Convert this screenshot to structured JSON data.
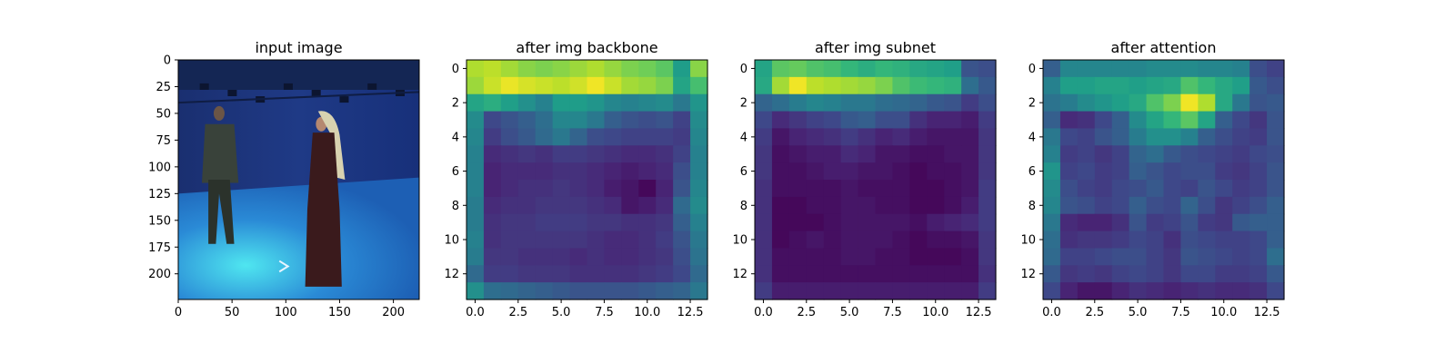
{
  "chart_data": [
    {
      "type": "image",
      "title": "input image",
      "xlim": [
        0,
        224
      ],
      "ylim": [
        224,
        0
      ],
      "xticks": [
        0,
        50,
        100,
        150,
        200
      ],
      "yticks": [
        0,
        25,
        50,
        75,
        100,
        125,
        150,
        175,
        200
      ],
      "xtick_labels": [
        "0",
        "50",
        "100",
        "150",
        "200"
      ],
      "ytick_labels": [
        "0",
        "25",
        "50",
        "75",
        "100",
        "125",
        "150",
        "175",
        "200"
      ],
      "image_description": [
        "man-standing-left",
        "woman-in-long-robe-right",
        "blue-studio-floor",
        "studio-lights-top"
      ],
      "colors": {
        "wall": "#1f3a86",
        "floor": "#2a8ad6",
        "floor_glow": "#4fe6f0",
        "man": "#39423a",
        "woman": "#3a1a1c"
      }
    },
    {
      "type": "heatmap",
      "title": "after img backbone",
      "colormap": "viridis",
      "xlim": [
        -0.5,
        13.5
      ],
      "ylim": [
        13.5,
        -0.5
      ],
      "xticks": [
        0,
        2.5,
        5,
        7.5,
        10,
        12.5
      ],
      "yticks": [
        0,
        2,
        4,
        6,
        8,
        10,
        12
      ],
      "xtick_labels": [
        "0.0",
        "2.5",
        "5.0",
        "7.5",
        "10.0",
        "12.5"
      ],
      "ytick_labels": [
        "0",
        "2",
        "4",
        "6",
        "8",
        "10",
        "12"
      ],
      "values": [
        [
          0.88,
          0.9,
          0.86,
          0.82,
          0.8,
          0.82,
          0.85,
          0.88,
          0.84,
          0.8,
          0.78,
          0.74,
          0.55,
          0.82
        ],
        [
          0.85,
          0.92,
          0.97,
          0.94,
          0.92,
          0.9,
          0.93,
          0.98,
          0.92,
          0.86,
          0.84,
          0.8,
          0.58,
          0.7
        ],
        [
          0.58,
          0.62,
          0.56,
          0.5,
          0.44,
          0.55,
          0.55,
          0.52,
          0.46,
          0.44,
          0.46,
          0.48,
          0.4,
          0.52
        ],
        [
          0.48,
          0.22,
          0.26,
          0.3,
          0.36,
          0.46,
          0.46,
          0.4,
          0.3,
          0.26,
          0.24,
          0.26,
          0.2,
          0.48
        ],
        [
          0.46,
          0.18,
          0.24,
          0.28,
          0.34,
          0.4,
          0.32,
          0.24,
          0.22,
          0.2,
          0.2,
          0.2,
          0.18,
          0.46
        ],
        [
          0.44,
          0.12,
          0.14,
          0.16,
          0.14,
          0.18,
          0.18,
          0.16,
          0.14,
          0.12,
          0.12,
          0.14,
          0.2,
          0.44
        ],
        [
          0.44,
          0.1,
          0.12,
          0.12,
          0.12,
          0.14,
          0.14,
          0.12,
          0.1,
          0.08,
          0.1,
          0.12,
          0.24,
          0.44
        ],
        [
          0.44,
          0.1,
          0.12,
          0.14,
          0.14,
          0.16,
          0.14,
          0.12,
          0.08,
          0.06,
          0.02,
          0.1,
          0.26,
          0.46
        ],
        [
          0.42,
          0.12,
          0.14,
          0.14,
          0.16,
          0.16,
          0.16,
          0.14,
          0.12,
          0.06,
          0.08,
          0.12,
          0.34,
          0.48
        ],
        [
          0.42,
          0.14,
          0.16,
          0.16,
          0.18,
          0.18,
          0.18,
          0.16,
          0.16,
          0.14,
          0.14,
          0.16,
          0.3,
          0.44
        ],
        [
          0.44,
          0.14,
          0.16,
          0.16,
          0.16,
          0.16,
          0.16,
          0.14,
          0.12,
          0.12,
          0.14,
          0.18,
          0.26,
          0.4
        ],
        [
          0.42,
          0.16,
          0.16,
          0.14,
          0.14,
          0.14,
          0.12,
          0.14,
          0.12,
          0.12,
          0.14,
          0.16,
          0.24,
          0.38
        ],
        [
          0.34,
          0.18,
          0.18,
          0.16,
          0.16,
          0.16,
          0.14,
          0.14,
          0.14,
          0.14,
          0.16,
          0.18,
          0.22,
          0.34
        ],
        [
          0.5,
          0.36,
          0.34,
          0.32,
          0.3,
          0.28,
          0.26,
          0.26,
          0.26,
          0.26,
          0.28,
          0.3,
          0.32,
          0.4
        ]
      ]
    },
    {
      "type": "heatmap",
      "title": "after img subnet",
      "colormap": "viridis",
      "xlim": [
        -0.5,
        13.5
      ],
      "ylim": [
        13.5,
        -0.5
      ],
      "xticks": [
        0,
        2.5,
        5,
        7.5,
        10,
        12.5
      ],
      "yticks": [
        0,
        2,
        4,
        6,
        8,
        10,
        12
      ],
      "xtick_labels": [
        "0.0",
        "2.5",
        "5.0",
        "7.5",
        "10.0",
        "12.5"
      ],
      "ytick_labels": [
        "0",
        "2",
        "4",
        "6",
        "8",
        "10",
        "12"
      ],
      "values": [
        [
          0.58,
          0.74,
          0.76,
          0.72,
          0.7,
          0.66,
          0.62,
          0.66,
          0.64,
          0.6,
          0.58,
          0.56,
          0.26,
          0.24
        ],
        [
          0.6,
          0.86,
          0.98,
          0.9,
          0.88,
          0.86,
          0.84,
          0.8,
          0.72,
          0.68,
          0.66,
          0.64,
          0.36,
          0.28
        ],
        [
          0.32,
          0.36,
          0.42,
          0.46,
          0.44,
          0.4,
          0.4,
          0.36,
          0.34,
          0.32,
          0.28,
          0.26,
          0.18,
          0.24
        ],
        [
          0.22,
          0.12,
          0.16,
          0.2,
          0.22,
          0.28,
          0.3,
          0.24,
          0.24,
          0.14,
          0.1,
          0.1,
          0.08,
          0.18
        ],
        [
          0.18,
          0.06,
          0.1,
          0.12,
          0.14,
          0.18,
          0.14,
          0.1,
          0.12,
          0.08,
          0.06,
          0.06,
          0.06,
          0.16
        ],
        [
          0.16,
          0.04,
          0.06,
          0.08,
          0.08,
          0.12,
          0.1,
          0.06,
          0.06,
          0.04,
          0.04,
          0.06,
          0.06,
          0.16
        ],
        [
          0.16,
          0.04,
          0.04,
          0.06,
          0.08,
          0.08,
          0.06,
          0.06,
          0.04,
          0.02,
          0.04,
          0.04,
          0.06,
          0.16
        ],
        [
          0.14,
          0.04,
          0.04,
          0.04,
          0.04,
          0.06,
          0.04,
          0.04,
          0.04,
          0.02,
          0.02,
          0.04,
          0.06,
          0.18
        ],
        [
          0.14,
          0.02,
          0.02,
          0.04,
          0.04,
          0.06,
          0.06,
          0.04,
          0.04,
          0.02,
          0.02,
          0.04,
          0.08,
          0.18
        ],
        [
          0.14,
          0.02,
          0.02,
          0.02,
          0.04,
          0.06,
          0.06,
          0.06,
          0.06,
          0.04,
          0.08,
          0.1,
          0.12,
          0.18
        ],
        [
          0.14,
          0.02,
          0.04,
          0.06,
          0.04,
          0.06,
          0.06,
          0.06,
          0.04,
          0.02,
          0.04,
          0.04,
          0.06,
          0.16
        ],
        [
          0.14,
          0.04,
          0.04,
          0.04,
          0.04,
          0.06,
          0.06,
          0.04,
          0.04,
          0.02,
          0.02,
          0.02,
          0.04,
          0.16
        ],
        [
          0.14,
          0.04,
          0.04,
          0.04,
          0.04,
          0.04,
          0.04,
          0.04,
          0.04,
          0.04,
          0.04,
          0.04,
          0.04,
          0.14
        ],
        [
          0.18,
          0.08,
          0.08,
          0.08,
          0.08,
          0.08,
          0.08,
          0.08,
          0.08,
          0.08,
          0.08,
          0.08,
          0.08,
          0.18
        ]
      ]
    },
    {
      "type": "heatmap",
      "title": "after attention",
      "colormap": "viridis",
      "xlim": [
        -0.5,
        13.5
      ],
      "ylim": [
        13.5,
        -0.5
      ],
      "xticks": [
        0,
        2.5,
        5,
        7.5,
        10,
        12.5
      ],
      "yticks": [
        0,
        2,
        4,
        6,
        8,
        10,
        12
      ],
      "xtick_labels": [
        "0.0",
        "2.5",
        "5.0",
        "7.5",
        "10.0",
        "12.5"
      ],
      "ytick_labels": [
        "0",
        "2",
        "4",
        "6",
        "8",
        "10",
        "12"
      ],
      "values": [
        [
          0.3,
          0.46,
          0.46,
          0.46,
          0.46,
          0.46,
          0.48,
          0.48,
          0.48,
          0.46,
          0.46,
          0.44,
          0.24,
          0.2
        ],
        [
          0.44,
          0.56,
          0.56,
          0.58,
          0.58,
          0.56,
          0.58,
          0.6,
          0.72,
          0.66,
          0.6,
          0.56,
          0.28,
          0.24
        ],
        [
          0.38,
          0.42,
          0.48,
          0.52,
          0.56,
          0.6,
          0.72,
          0.8,
          0.98,
          0.88,
          0.6,
          0.4,
          0.26,
          0.28
        ],
        [
          0.3,
          0.12,
          0.14,
          0.22,
          0.3,
          0.48,
          0.58,
          0.66,
          0.74,
          0.58,
          0.3,
          0.22,
          0.16,
          0.26
        ],
        [
          0.4,
          0.22,
          0.2,
          0.26,
          0.3,
          0.42,
          0.5,
          0.5,
          0.44,
          0.3,
          0.24,
          0.2,
          0.18,
          0.26
        ],
        [
          0.44,
          0.18,
          0.2,
          0.16,
          0.2,
          0.32,
          0.36,
          0.28,
          0.24,
          0.22,
          0.2,
          0.18,
          0.22,
          0.24
        ],
        [
          0.52,
          0.2,
          0.22,
          0.18,
          0.2,
          0.3,
          0.26,
          0.22,
          0.24,
          0.24,
          0.18,
          0.16,
          0.2,
          0.26
        ],
        [
          0.48,
          0.24,
          0.2,
          0.18,
          0.22,
          0.24,
          0.28,
          0.22,
          0.2,
          0.26,
          0.22,
          0.18,
          0.2,
          0.26
        ],
        [
          0.46,
          0.26,
          0.24,
          0.2,
          0.22,
          0.3,
          0.24,
          0.22,
          0.32,
          0.24,
          0.16,
          0.2,
          0.24,
          0.3
        ],
        [
          0.4,
          0.12,
          0.1,
          0.1,
          0.14,
          0.26,
          0.18,
          0.2,
          0.26,
          0.18,
          0.16,
          0.28,
          0.3,
          0.3
        ],
        [
          0.36,
          0.14,
          0.16,
          0.16,
          0.18,
          0.22,
          0.2,
          0.14,
          0.24,
          0.22,
          0.2,
          0.2,
          0.22,
          0.3
        ],
        [
          0.34,
          0.2,
          0.2,
          0.22,
          0.24,
          0.24,
          0.2,
          0.16,
          0.26,
          0.24,
          0.22,
          0.2,
          0.22,
          0.36
        ],
        [
          0.28,
          0.16,
          0.18,
          0.16,
          0.2,
          0.22,
          0.2,
          0.16,
          0.22,
          0.22,
          0.18,
          0.18,
          0.2,
          0.28
        ],
        [
          0.22,
          0.1,
          0.06,
          0.06,
          0.1,
          0.14,
          0.12,
          0.1,
          0.12,
          0.14,
          0.12,
          0.12,
          0.14,
          0.22
        ]
      ]
    }
  ]
}
